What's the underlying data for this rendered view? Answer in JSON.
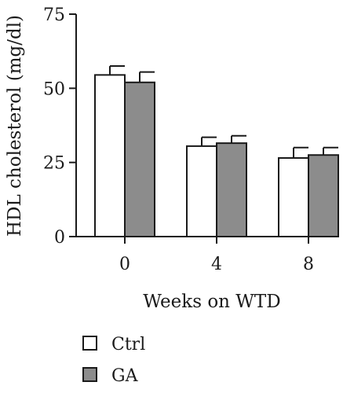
{
  "chart_data": {
    "type": "bar",
    "title": "",
    "xlabel": "Weeks on WTD",
    "ylabel": "HDL cholesterol (mg/dl)",
    "ylim": [
      0,
      75
    ],
    "yticks": [
      0,
      25,
      50,
      75
    ],
    "categories": [
      "0",
      "4",
      "8"
    ],
    "series": [
      {
        "name": "Ctrl",
        "values": [
          54.5,
          30.5,
          26.5
        ],
        "errors": [
          3.0,
          3.0,
          3.5
        ],
        "color": "#ffffff"
      },
      {
        "name": "GA",
        "values": [
          52.0,
          31.5,
          27.5
        ],
        "errors": [
          3.5,
          2.5,
          2.5
        ],
        "color": "#8c8c8c"
      }
    ],
    "grid": false,
    "legend": "bottom-left"
  }
}
